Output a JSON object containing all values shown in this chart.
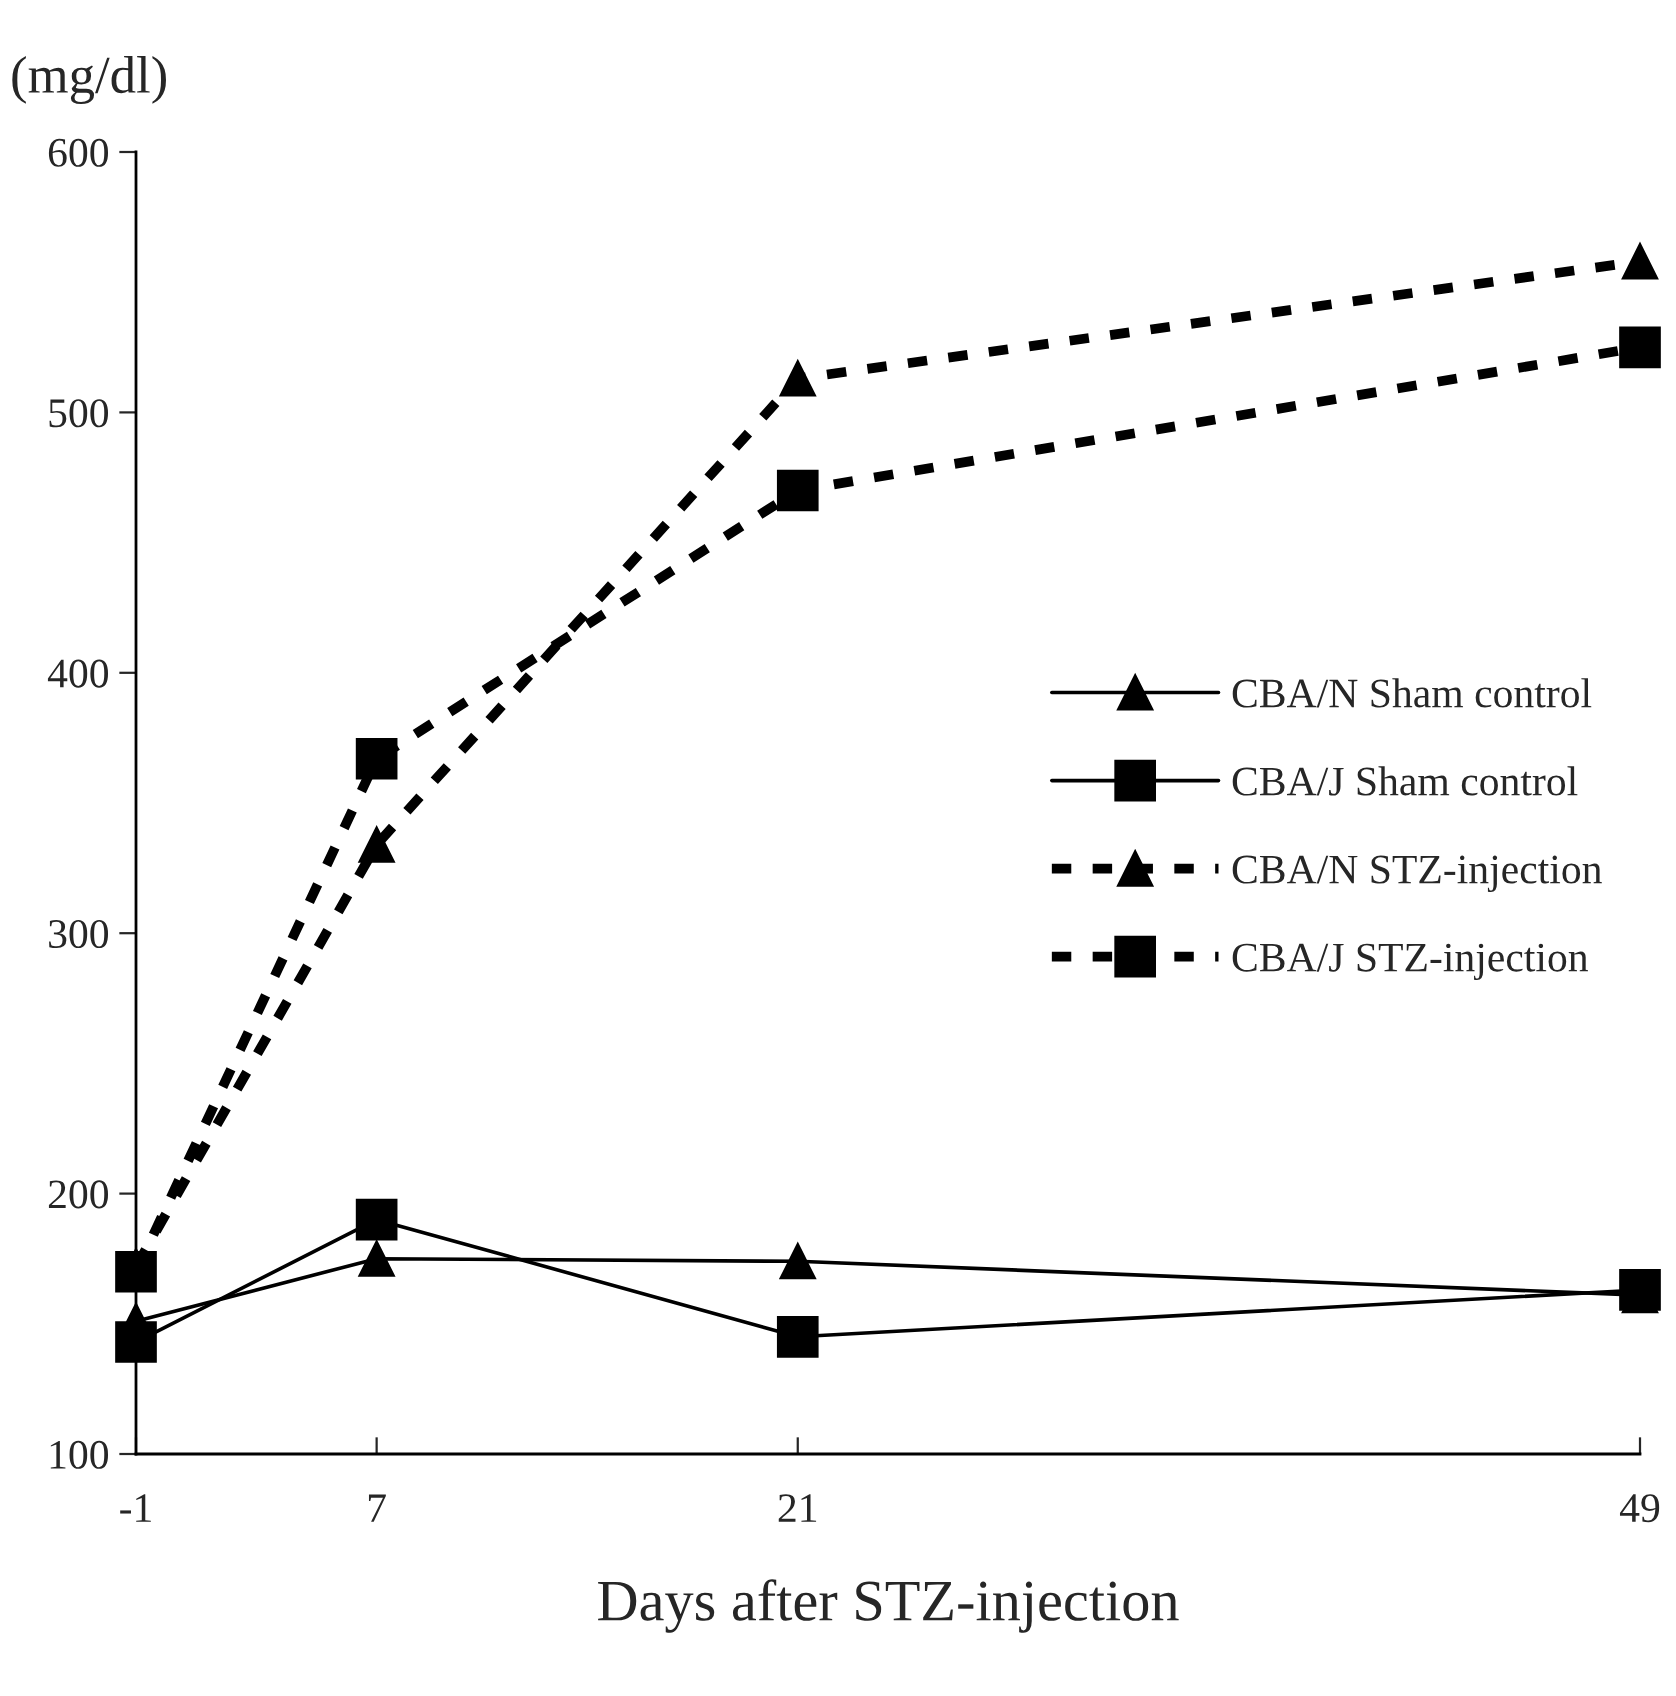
{
  "chart_data": {
    "type": "line",
    "ylabel": "(mg/dl)",
    "xlabel": "Days after STZ-injection",
    "x": [
      -1,
      7,
      21,
      49
    ],
    "series": [
      {
        "name": "CBA/N Sham control",
        "color": "#000000",
        "marker": "triangle",
        "line_style": "solid",
        "values": [
          151,
          175,
          174,
          161
        ]
      },
      {
        "name": "CBA/J Sham control",
        "color": "#000000",
        "marker": "square",
        "line_style": "solid",
        "values": [
          143,
          190,
          145,
          163
        ]
      },
      {
        "name": "CBA/N STZ-injection",
        "color": "#000000",
        "marker": "triangle",
        "line_style": "dashed",
        "values": [
          172,
          334,
          513,
          558
        ]
      },
      {
        "name": "CBA/J STZ-injection",
        "color": "#000000",
        "marker": "square",
        "line_style": "dashed",
        "values": [
          170,
          367,
          470,
          525
        ]
      }
    ],
    "xlim": [
      -1,
      49
    ],
    "xticks": [
      -1,
      7,
      21,
      49
    ],
    "ylim": [
      100,
      600
    ],
    "yticks": [
      100,
      200,
      300,
      400,
      500,
      600
    ],
    "grid": false,
    "legend": "right"
  }
}
